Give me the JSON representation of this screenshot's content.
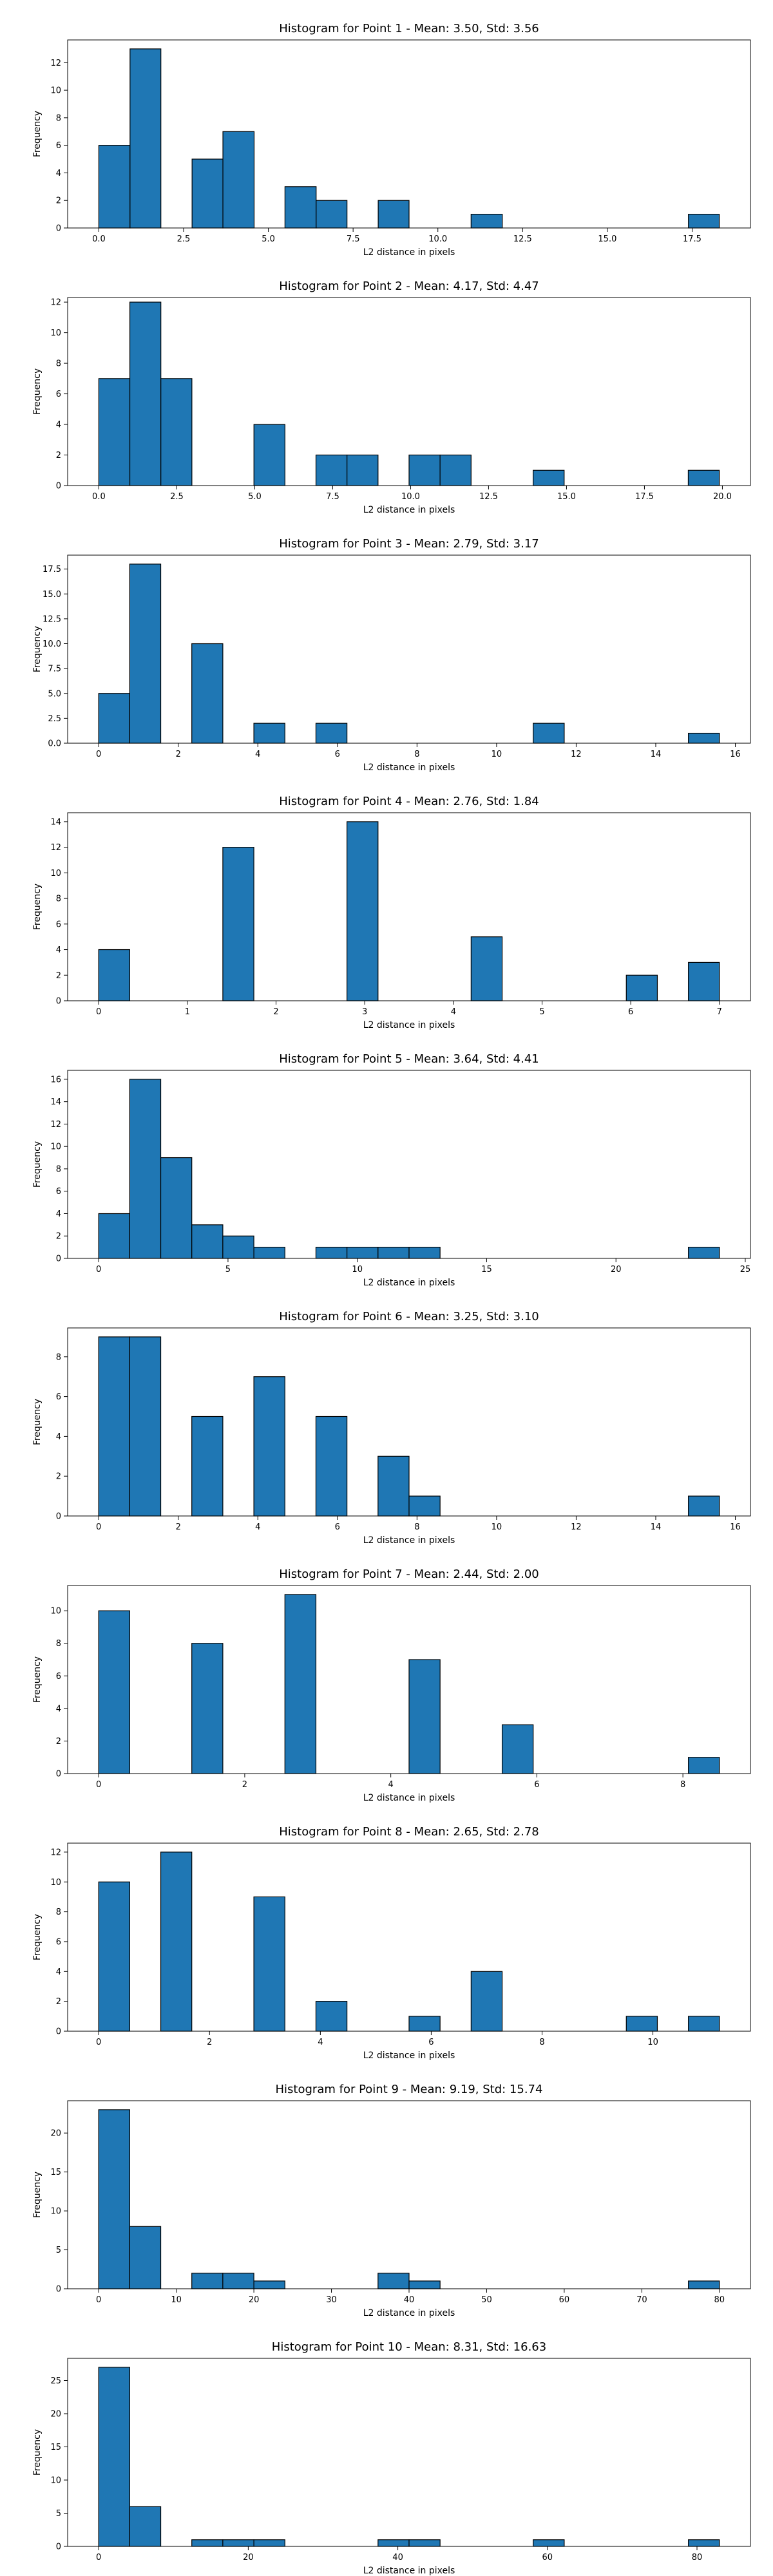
{
  "colors": {
    "bar_fill": "#1f77b4",
    "bar_edge": "#000000",
    "axis": "#000000",
    "background": "#ffffff"
  },
  "chart_data": [
    {
      "type": "bar",
      "title": "Histogram for Point 1 - Mean: 3.50, Std: 3.56",
      "xlabel": "L2 distance in pixels",
      "ylabel": "Frequency",
      "xlim": [
        -0.92,
        19.22
      ],
      "ylim": [
        0,
        13.65
      ],
      "xticks": [
        0.0,
        2.5,
        5.0,
        7.5,
        10.0,
        12.5,
        15.0,
        17.5
      ],
      "xtick_labels": [
        "0.0",
        "2.5",
        "5.0",
        "7.5",
        "10.0",
        "12.5",
        "15.0",
        "17.5"
      ],
      "yticks": [
        0,
        2,
        4,
        6,
        8,
        10,
        12
      ],
      "ytick_labels": [
        "0",
        "2",
        "4",
        "6",
        "8",
        "10",
        "12"
      ],
      "bin_edges": [
        0.0,
        0.92,
        1.83,
        2.75,
        3.66,
        4.58,
        5.49,
        6.41,
        7.32,
        8.24,
        9.15,
        10.07,
        10.98,
        11.9,
        12.81,
        13.73,
        14.64,
        15.56,
        16.47,
        17.39,
        18.3
      ],
      "counts": [
        6,
        13,
        0,
        5,
        7,
        0,
        3,
        2,
        0,
        2,
        0,
        0,
        1,
        0,
        0,
        0,
        0,
        0,
        0,
        1
      ]
    },
    {
      "type": "bar",
      "title": "Histogram for Point 2 - Mean: 4.17, Std: 4.47",
      "xlabel": "L2 distance in pixels",
      "ylabel": "Frequency",
      "xlim": [
        -1.0,
        20.9
      ],
      "ylim": [
        0,
        12.3
      ],
      "xticks": [
        0.0,
        2.5,
        5.0,
        7.5,
        10.0,
        12.5,
        15.0,
        17.5,
        20.0
      ],
      "xtick_labels": [
        "0.0",
        "2.5",
        "5.0",
        "7.5",
        "10.0",
        "12.5",
        "15.0",
        "17.5",
        "20.0"
      ],
      "yticks": [
        0,
        2,
        4,
        6,
        8,
        10,
        12
      ],
      "ytick_labels": [
        "0",
        "2",
        "4",
        "6",
        "8",
        "10",
        "12"
      ],
      "bin_edges": [
        0.0,
        0.995,
        1.99,
        2.985,
        3.98,
        4.975,
        5.97,
        6.965,
        7.96,
        8.955,
        9.95,
        10.945,
        11.94,
        12.935,
        13.93,
        14.925,
        15.92,
        16.915,
        17.91,
        18.905,
        19.9
      ],
      "counts": [
        7,
        12,
        7,
        0,
        0,
        4,
        0,
        2,
        2,
        0,
        2,
        2,
        0,
        0,
        1,
        0,
        0,
        0,
        0,
        1
      ]
    },
    {
      "type": "bar",
      "title": "Histogram for Point 3 - Mean: 2.79, Std: 3.17",
      "xlabel": "L2 distance in pixels",
      "ylabel": "Frequency",
      "xlim": [
        -0.78,
        16.38
      ],
      "ylim": [
        0,
        18.9
      ],
      "xticks": [
        0,
        2,
        4,
        6,
        8,
        10,
        12,
        14,
        16
      ],
      "xtick_labels": [
        "0",
        "2",
        "4",
        "6",
        "8",
        "10",
        "12",
        "14",
        "16"
      ],
      "yticks": [
        0.0,
        2.5,
        5.0,
        7.5,
        10.0,
        12.5,
        15.0,
        17.5
      ],
      "ytick_labels": [
        "0.0",
        "2.5",
        "5.0",
        "7.5",
        "10.0",
        "12.5",
        "15.0",
        "17.5"
      ],
      "bin_edges": [
        0.0,
        0.78,
        1.56,
        2.34,
        3.12,
        3.9,
        4.68,
        5.46,
        6.24,
        7.02,
        7.8,
        8.58,
        9.36,
        10.14,
        10.92,
        11.7,
        12.48,
        13.26,
        14.04,
        14.82,
        15.6
      ],
      "counts": [
        5,
        18,
        0,
        10,
        0,
        2,
        0,
        2,
        0,
        0,
        0,
        0,
        0,
        0,
        2,
        0,
        0,
        0,
        0,
        1
      ]
    },
    {
      "type": "bar",
      "title": "Histogram for Point 4 - Mean: 2.76, Std: 1.84",
      "xlabel": "L2 distance in pixels",
      "ylabel": "Frequency",
      "xlim": [
        -0.35,
        7.35
      ],
      "ylim": [
        0,
        14.7
      ],
      "xticks": [
        0,
        1,
        2,
        3,
        4,
        5,
        6,
        7
      ],
      "xtick_labels": [
        "0",
        "1",
        "2",
        "3",
        "4",
        "5",
        "6",
        "7"
      ],
      "yticks": [
        0,
        2,
        4,
        6,
        8,
        10,
        12,
        14
      ],
      "ytick_labels": [
        "0",
        "2",
        "4",
        "6",
        "8",
        "10",
        "12",
        "14"
      ],
      "bin_edges": [
        0.0,
        0.35,
        0.7,
        1.05,
        1.4,
        1.75,
        2.1,
        2.45,
        2.8,
        3.15,
        3.5,
        3.85,
        4.2,
        4.55,
        4.9,
        5.25,
        5.6,
        5.95,
        6.3,
        6.65,
        7.0
      ],
      "counts": [
        4,
        0,
        0,
        0,
        12,
        0,
        0,
        0,
        14,
        0,
        0,
        0,
        5,
        0,
        0,
        0,
        0,
        2,
        0,
        3
      ]
    },
    {
      "type": "bar",
      "title": "Histogram for Point 5 - Mean: 3.64, Std: 4.41",
      "xlabel": "L2 distance in pixels",
      "ylabel": "Frequency",
      "xlim": [
        -1.2,
        25.2
      ],
      "ylim": [
        0,
        16.8
      ],
      "xticks": [
        0,
        5,
        10,
        15,
        20,
        25
      ],
      "xtick_labels": [
        "0",
        "5",
        "10",
        "15",
        "20",
        "25"
      ],
      "yticks": [
        0,
        2,
        4,
        6,
        8,
        10,
        12,
        14,
        16
      ],
      "ytick_labels": [
        "0",
        "2",
        "4",
        "6",
        "8",
        "10",
        "12",
        "14",
        "16"
      ],
      "bin_edges": [
        0.0,
        1.2,
        2.4,
        3.6,
        4.8,
        6.0,
        7.2,
        8.4,
        9.6,
        10.8,
        12.0,
        13.2,
        14.4,
        15.6,
        16.8,
        18.0,
        19.2,
        20.4,
        21.6,
        22.8,
        24.0
      ],
      "counts": [
        4,
        16,
        9,
        3,
        2,
        1,
        0,
        1,
        1,
        1,
        1,
        0,
        0,
        0,
        0,
        0,
        0,
        0,
        0,
        1
      ]
    },
    {
      "type": "bar",
      "title": "Histogram for Point 6 - Mean: 3.25, Std: 3.10",
      "xlabel": "L2 distance in pixels",
      "ylabel": "Frequency",
      "xlim": [
        -0.78,
        16.38
      ],
      "ylim": [
        0,
        9.45
      ],
      "xticks": [
        0,
        2,
        4,
        6,
        8,
        10,
        12,
        14,
        16
      ],
      "xtick_labels": [
        "0",
        "2",
        "4",
        "6",
        "8",
        "10",
        "12",
        "14",
        "16"
      ],
      "yticks": [
        0,
        2,
        4,
        6,
        8
      ],
      "ytick_labels": [
        "0",
        "2",
        "4",
        "6",
        "8"
      ],
      "bin_edges": [
        0.0,
        0.78,
        1.56,
        2.34,
        3.12,
        3.9,
        4.68,
        5.46,
        6.24,
        7.02,
        7.8,
        8.58,
        9.36,
        10.14,
        10.92,
        11.7,
        12.48,
        13.26,
        14.04,
        14.82,
        15.6
      ],
      "counts": [
        9,
        9,
        0,
        5,
        0,
        7,
        0,
        5,
        0,
        3,
        1,
        0,
        0,
        0,
        0,
        0,
        0,
        0,
        0,
        1
      ]
    },
    {
      "type": "bar",
      "title": "Histogram for Point 7 - Mean: 2.44, Std: 2.00",
      "xlabel": "L2 distance in pixels",
      "ylabel": "Frequency",
      "xlim": [
        -0.425,
        8.925
      ],
      "ylim": [
        0,
        11.55
      ],
      "xticks": [
        0,
        2,
        4,
        6,
        8
      ],
      "xtick_labels": [
        "0",
        "2",
        "4",
        "6",
        "8"
      ],
      "yticks": [
        0,
        2,
        4,
        6,
        8,
        10
      ],
      "ytick_labels": [
        "0",
        "2",
        "4",
        "6",
        "8",
        "10"
      ],
      "bin_edges": [
        0.0,
        0.425,
        0.85,
        1.275,
        1.7,
        2.125,
        2.55,
        2.975,
        3.4,
        3.825,
        4.25,
        4.675,
        5.1,
        5.525,
        5.95,
        6.375,
        6.8,
        7.225,
        7.65,
        8.075,
        8.5
      ],
      "counts": [
        10,
        0,
        0,
        8,
        0,
        0,
        11,
        0,
        0,
        0,
        7,
        0,
        0,
        3,
        0,
        0,
        0,
        0,
        0,
        1
      ]
    },
    {
      "type": "bar",
      "title": "Histogram for Point 8 - Mean: 2.65, Std: 2.78",
      "xlabel": "L2 distance in pixels",
      "ylabel": "Frequency",
      "xlim": [
        -0.56,
        11.76
      ],
      "ylim": [
        0,
        12.6
      ],
      "xticks": [
        0,
        2,
        4,
        6,
        8,
        10
      ],
      "xtick_labels": [
        "0",
        "2",
        "4",
        "6",
        "8",
        "10"
      ],
      "yticks": [
        0,
        2,
        4,
        6,
        8,
        10,
        12
      ],
      "ytick_labels": [
        "0",
        "2",
        "4",
        "6",
        "8",
        "10",
        "12"
      ],
      "bin_edges": [
        0.0,
        0.56,
        1.12,
        1.68,
        2.24,
        2.8,
        3.36,
        3.92,
        4.48,
        5.04,
        5.6,
        6.16,
        6.72,
        7.28,
        7.84,
        8.4,
        8.96,
        9.52,
        10.08,
        10.64,
        11.2
      ],
      "counts": [
        10,
        0,
        12,
        0,
        0,
        9,
        0,
        2,
        0,
        0,
        1,
        0,
        4,
        0,
        0,
        0,
        0,
        1,
        0,
        1
      ]
    },
    {
      "type": "bar",
      "title": "Histogram for Point 9 - Mean: 9.19, Std: 15.74",
      "xlabel": "L2 distance in pixels",
      "ylabel": "Frequency",
      "xlim": [
        -4.0,
        84.0
      ],
      "ylim": [
        0,
        24.15
      ],
      "xticks": [
        0,
        10,
        20,
        30,
        40,
        50,
        60,
        70,
        80
      ],
      "xtick_labels": [
        "0",
        "10",
        "20",
        "30",
        "40",
        "50",
        "60",
        "70",
        "80"
      ],
      "yticks": [
        0,
        5,
        10,
        15,
        20
      ],
      "ytick_labels": [
        "0",
        "5",
        "10",
        "15",
        "20"
      ],
      "bin_edges": [
        0.0,
        4.0,
        8.0,
        12.0,
        16.0,
        20.0,
        24.0,
        28.0,
        32.0,
        36.0,
        40.0,
        44.0,
        48.0,
        52.0,
        56.0,
        60.0,
        64.0,
        68.0,
        72.0,
        76.0,
        80.0
      ],
      "counts": [
        23,
        8,
        0,
        2,
        2,
        1,
        0,
        0,
        0,
        2,
        1,
        0,
        0,
        0,
        0,
        0,
        0,
        0,
        0,
        1
      ]
    },
    {
      "type": "bar",
      "title": "Histogram for Point 10 - Mean: 8.31, Std: 16.63",
      "xlabel": "L2 distance in pixels",
      "ylabel": "Frequency",
      "xlim": [
        -4.15,
        87.15
      ],
      "ylim": [
        0,
        28.35
      ],
      "xticks": [
        0,
        20,
        40,
        60,
        80
      ],
      "xtick_labels": [
        "0",
        "20",
        "40",
        "60",
        "80"
      ],
      "yticks": [
        0,
        5,
        10,
        15,
        20,
        25
      ],
      "ytick_labels": [
        "0",
        "5",
        "10",
        "15",
        "20",
        "25"
      ],
      "bin_edges": [
        0.0,
        4.15,
        8.3,
        12.45,
        16.6,
        20.75,
        24.9,
        29.05,
        33.2,
        37.35,
        41.5,
        45.65,
        49.8,
        53.95,
        58.1,
        62.25,
        66.4,
        70.55,
        74.7,
        78.85,
        83.0
      ],
      "counts": [
        27,
        6,
        0,
        1,
        1,
        1,
        0,
        0,
        0,
        1,
        1,
        0,
        0,
        0,
        1,
        0,
        0,
        0,
        0,
        1
      ]
    }
  ]
}
